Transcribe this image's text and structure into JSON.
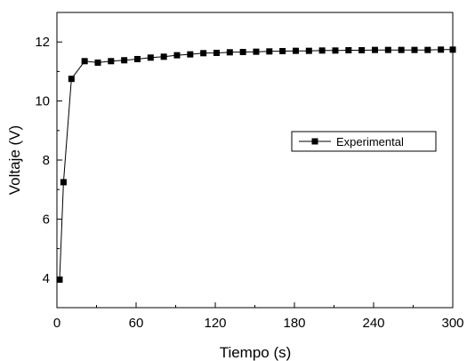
{
  "chart_data": {
    "type": "line",
    "xlabel": "Tiempo (s)",
    "ylabel": "Voltaje (V)",
    "xlim": [
      0,
      300
    ],
    "ylim": [
      3,
      13
    ],
    "x_ticks": [
      0,
      60,
      120,
      180,
      240,
      300
    ],
    "y_ticks": [
      4,
      6,
      8,
      10,
      12
    ],
    "grid": false,
    "legend_position": "right-middle",
    "series": [
      {
        "name": "Experimental",
        "color": "#000000",
        "marker": "square",
        "points": [
          [
            2,
            3.95
          ],
          [
            5,
            7.25
          ],
          [
            11,
            10.75
          ],
          [
            21,
            11.35
          ],
          [
            31,
            11.3
          ],
          [
            41,
            11.35
          ],
          [
            51,
            11.38
          ],
          [
            61,
            11.42
          ],
          [
            71,
            11.47
          ],
          [
            81,
            11.5
          ],
          [
            91,
            11.55
          ],
          [
            101,
            11.58
          ],
          [
            111,
            11.62
          ],
          [
            121,
            11.63
          ],
          [
            131,
            11.65
          ],
          [
            141,
            11.66
          ],
          [
            151,
            11.67
          ],
          [
            161,
            11.68
          ],
          [
            171,
            11.69
          ],
          [
            181,
            11.7
          ],
          [
            191,
            11.7
          ],
          [
            201,
            11.71
          ],
          [
            211,
            11.71
          ],
          [
            221,
            11.72
          ],
          [
            231,
            11.72
          ],
          [
            241,
            11.73
          ],
          [
            251,
            11.73
          ],
          [
            261,
            11.73
          ],
          [
            271,
            11.73
          ],
          [
            281,
            11.73
          ],
          [
            291,
            11.74
          ],
          [
            300,
            11.74
          ]
        ]
      }
    ]
  }
}
